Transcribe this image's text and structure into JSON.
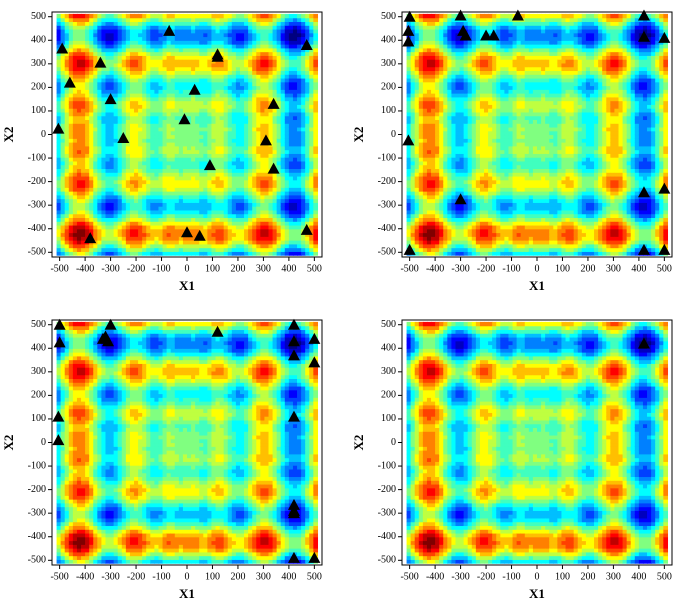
{
  "chart_data": [
    {
      "type": "scatter",
      "x_label": "X1",
      "y_label": "X2",
      "marker_color": "#000000",
      "x": [
        -490,
        -460,
        -505,
        -340,
        -300,
        -250,
        -70,
        30,
        -10,
        120,
        120,
        90,
        340,
        310,
        340,
        470,
        470,
        -380,
        0,
        50
      ],
      "y": [
        365,
        220,
        25,
        305,
        150,
        -15,
        440,
        190,
        65,
        340,
        330,
        -130,
        130,
        -25,
        -145,
        380,
        -405,
        -440,
        -415,
        -430
      ],
      "xlim": [
        -530,
        530
      ],
      "ylim": [
        -520,
        520
      ],
      "xticks": [
        -500,
        -400,
        -300,
        -200,
        -100,
        0,
        100,
        200,
        300,
        400,
        500
      ],
      "yticks": [
        -500,
        -400,
        -300,
        -200,
        -100,
        0,
        100,
        200,
        300,
        400,
        500
      ]
    },
    {
      "type": "scatter",
      "x_label": "X1",
      "y_label": "X2",
      "marker_color": "#000000",
      "x": [
        -500,
        -505,
        -505,
        -300,
        -290,
        -280,
        -200,
        -170,
        -75,
        420,
        420,
        500,
        -505,
        -300,
        420,
        500,
        -500,
        420,
        500
      ],
      "y": [
        500,
        440,
        395,
        505,
        440,
        420,
        420,
        420,
        505,
        505,
        415,
        410,
        -25,
        -275,
        -245,
        -230,
        -490,
        -490,
        -490
      ],
      "xlim": [
        -530,
        530
      ],
      "ylim": [
        -520,
        520
      ],
      "xticks": [
        -500,
        -400,
        -300,
        -200,
        -100,
        0,
        100,
        200,
        300,
        400,
        500
      ],
      "yticks": [
        -500,
        -400,
        -300,
        -200,
        -100,
        0,
        100,
        200,
        300,
        400,
        500
      ]
    },
    {
      "type": "scatter",
      "x_label": "X1",
      "y_label": "X2",
      "marker_color": "#000000",
      "x": [
        -500,
        -500,
        -300,
        -330,
        -320,
        -310,
        120,
        420,
        420,
        500,
        420,
        500,
        -505,
        -505,
        420,
        420,
        420,
        420,
        420,
        500
      ],
      "y": [
        500,
        425,
        500,
        440,
        450,
        430,
        470,
        500,
        430,
        440,
        370,
        340,
        110,
        10,
        110,
        -265,
        -290,
        -300,
        -490,
        -490
      ],
      "xlim": [
        -530,
        530
      ],
      "ylim": [
        -520,
        520
      ],
      "xticks": [
        -500,
        -400,
        -300,
        -200,
        -100,
        0,
        100,
        200,
        300,
        400,
        500
      ],
      "yticks": [
        -500,
        -400,
        -300,
        -200,
        -100,
        0,
        100,
        200,
        300,
        400,
        500
      ]
    },
    {
      "type": "scatter",
      "x_label": "X1",
      "y_label": "X2",
      "marker_color": "#000000",
      "x": [
        420
      ],
      "y": [
        420
      ],
      "xlim": [
        -530,
        530
      ],
      "ylim": [
        -520,
        520
      ],
      "xticks": [
        -500,
        -400,
        -300,
        -200,
        -100,
        0,
        100,
        200,
        300,
        400,
        500
      ],
      "yticks": [
        -500,
        -400,
        -300,
        -200,
        -100,
        0,
        100,
        200,
        300,
        400,
        500
      ]
    }
  ]
}
